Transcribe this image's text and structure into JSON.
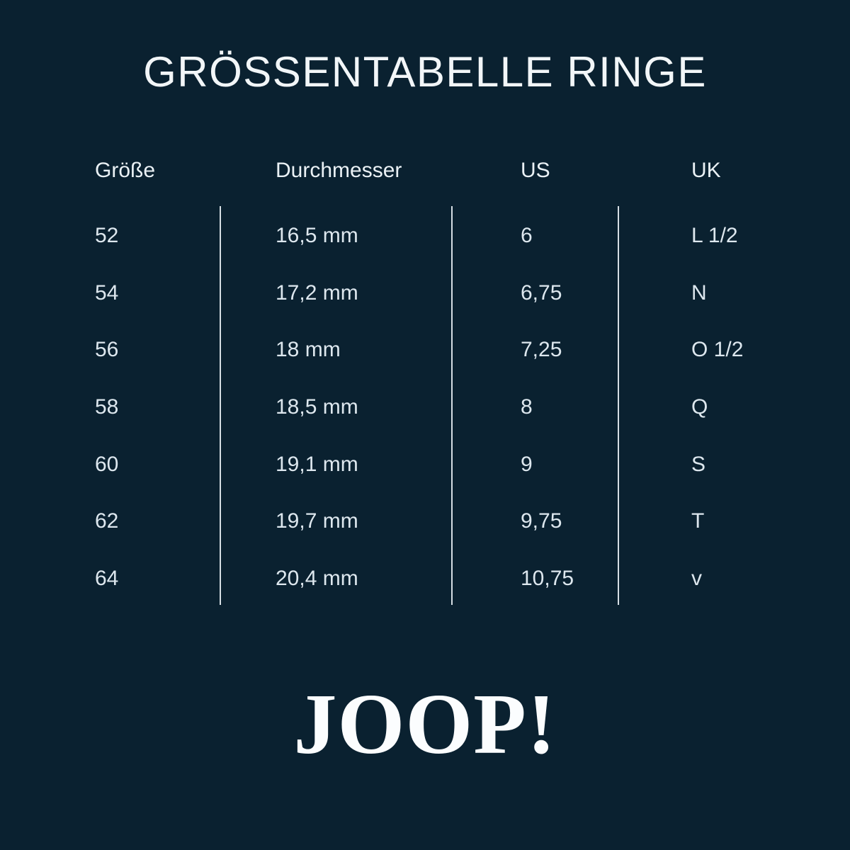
{
  "title": "GRÖSSENTABELLE RINGE",
  "brand": "JOOP!",
  "colors": {
    "background": "#0A2130",
    "text": "#DDE7EE",
    "heading": "#F2F6F8",
    "divider": "#E8EFF4",
    "logo": "#FBFDFE"
  },
  "table": {
    "columns": [
      "Größe",
      "Durchmesser",
      "US",
      "UK"
    ],
    "rows": [
      {
        "groesse": "52",
        "durchmesser": "16,5 mm",
        "us": "6",
        "uk": "L 1/2"
      },
      {
        "groesse": "54",
        "durchmesser": "17,2 mm",
        "us": "6,75",
        "uk": "N"
      },
      {
        "groesse": "56",
        "durchmesser": "18 mm",
        "us": "7,25",
        "uk": "O 1/2"
      },
      {
        "groesse": "58",
        "durchmesser": "18,5 mm",
        "us": "8",
        "uk": "Q"
      },
      {
        "groesse": "60",
        "durchmesser": "19,1 mm",
        "us": "9",
        "uk": "S"
      },
      {
        "groesse": "62",
        "durchmesser": "19,7 mm",
        "us": "9,75",
        "uk": "T"
      },
      {
        "groesse": "64",
        "durchmesser": "20,4 mm",
        "us": "10,75",
        "uk": "v"
      }
    ]
  }
}
